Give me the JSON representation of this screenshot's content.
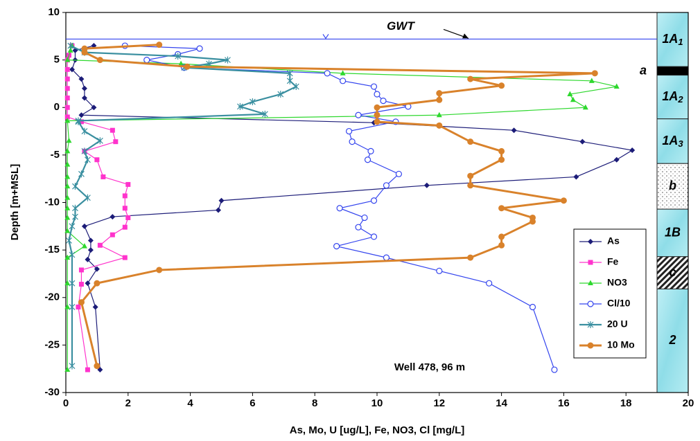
{
  "chart_data": {
    "type": "scatter",
    "x_label": "As,  Mo, U  [ug/L],   Fe, NO3, Cl  [mg/L]",
    "y_label": "Depth  [m+MSL]",
    "xlim": [
      0,
      20
    ],
    "xticks": [
      0,
      2,
      4,
      6,
      8,
      10,
      12,
      14,
      16,
      18,
      20
    ],
    "ylim": [
      -30,
      10
    ],
    "yticks": [
      -30,
      -25,
      -20,
      -15,
      -10,
      -5,
      0,
      5,
      10
    ],
    "grid": false,
    "legend": "lower right",
    "annotation": "Well 478, 96 m",
    "gwt": {
      "label": "GWT",
      "depth": 7.2
    },
    "layers": [
      {
        "label": "1A",
        "sub": "1",
        "top": 10,
        "bottom": 4.3,
        "fill": "water"
      },
      {
        "label": "a",
        "top": 4.3,
        "bottom": 3.4,
        "fill": "black"
      },
      {
        "label": "1A",
        "sub": "2",
        "top": 3.4,
        "bottom": -1.2,
        "fill": "water"
      },
      {
        "label": "1A",
        "sub": "3",
        "top": -1.2,
        "bottom": -5.9,
        "fill": "water"
      },
      {
        "label": "b",
        "top": -5.9,
        "bottom": -10.7,
        "fill": "dots"
      },
      {
        "label": "1B",
        "top": -10.7,
        "bottom": -15.7,
        "fill": "water"
      },
      {
        "label": "c",
        "top": -15.7,
        "bottom": -19.1,
        "fill": "hatch"
      },
      {
        "label": "2",
        "top": -19.1,
        "bottom": -30,
        "fill": "water"
      }
    ],
    "series": [
      {
        "name": "As",
        "color": "#1c1c78",
        "marker": "diamond",
        "line_width": 1.2,
        "x": [
          0.9,
          0.3,
          0.3,
          0.2,
          0.5,
          0.6,
          0.6,
          0.9,
          0.5,
          9.9,
          14.4,
          16.6,
          18.2,
          17.7,
          16.4,
          11.6,
          5.0,
          4.9,
          1.5,
          0.6,
          0.8,
          0.8,
          0.7,
          1.0,
          0.7,
          0.95,
          1.1
        ],
        "y": [
          6.5,
          6,
          5,
          4,
          3,
          2,
          1,
          0,
          -0.8,
          -1.6,
          -2.4,
          -3.6,
          -4.5,
          -5.5,
          -7.3,
          -8.2,
          -9.8,
          -10.8,
          -11.5,
          -12.5,
          -14,
          -15,
          -16,
          -17,
          -18.5,
          -21,
          -27.6
        ]
      },
      {
        "name": "Fe",
        "color": "#ff33cc",
        "marker": "square",
        "line_width": 1.2,
        "x": [
          0.2,
          0.1,
          0.05,
          0.05,
          0.05,
          0.05,
          0.05,
          0.05,
          0.05,
          0.5,
          1.5,
          1.6,
          0.6,
          1.0,
          1.2,
          2.0,
          1.9,
          1.9,
          2.0,
          1.9,
          1.5,
          1.1,
          1.9,
          0.5,
          0.5,
          0.4,
          0.7
        ],
        "y": [
          6.5,
          5.5,
          5,
          4,
          3,
          2,
          1,
          0,
          -1,
          -1.5,
          -2.4,
          -3.6,
          -4.6,
          -5.5,
          -7.3,
          -8.1,
          -9.3,
          -10.6,
          -11.6,
          -12.6,
          -13.4,
          -14.5,
          -15.8,
          -17.1,
          -18.6,
          -21,
          -27.6
        ]
      },
      {
        "name": "NO3",
        "color": "#2ed82e",
        "marker": "triangle",
        "line_width": 1.2,
        "x": [
          0.2,
          0.15,
          0.05,
          3.7,
          8.9,
          16.9,
          17.7,
          16.2,
          16.3,
          16.7,
          12.0,
          0.05,
          0.1,
          0.05,
          0.05,
          0.05,
          0.05,
          0.05,
          0.05,
          0.05,
          0.05,
          0.6,
          0.05,
          0.05,
          0.05,
          0.05
        ],
        "y": [
          6.5,
          6,
          5,
          4.6,
          3.6,
          2.8,
          2.2,
          1.4,
          0.8,
          0,
          -0.8,
          -1.4,
          -3.5,
          -4.6,
          -6,
          -7.3,
          -8.3,
          -9.5,
          -10.6,
          -11.6,
          -13,
          -14.6,
          -15.8,
          -18.5,
          -21,
          -27.6
        ]
      },
      {
        "name": "Cl/10",
        "color": "#3344ee",
        "marker": "circle-open",
        "line_width": 1.2,
        "x": [
          1.9,
          4.3,
          3.6,
          2.6,
          3.8,
          8.4,
          8.9,
          9.9,
          10.0,
          10.2,
          11.0,
          9.4,
          10.6,
          9.1,
          9.2,
          9.8,
          9.7,
          10.7,
          10.3,
          9.9,
          8.8,
          9.6,
          9.4,
          9.9,
          8.7,
          10.3,
          12.0,
          13.6,
          15.0,
          15.7
        ],
        "y": [
          6.5,
          6.2,
          5.6,
          5.0,
          4.2,
          3.6,
          2.8,
          2.2,
          1.4,
          0.7,
          0.1,
          -0.8,
          -1.5,
          -2.5,
          -3.6,
          -4.6,
          -5.5,
          -7.0,
          -8.2,
          -9.8,
          -10.6,
          -11.6,
          -12.6,
          -13.6,
          -14.6,
          -15.8,
          -17.2,
          -18.5,
          -21,
          -27.6
        ]
      },
      {
        "name": "20 U",
        "color": "#3a8fa0",
        "marker": "asterisk",
        "line_width": 2.2,
        "x": [
          0.15,
          0.6,
          3.6,
          5.2,
          4.6,
          3.8,
          7.2,
          7.2,
          7.4,
          6.9,
          6.0,
          5.6,
          6.4,
          0.4,
          0.4,
          0.6,
          1.1,
          0.6,
          0.7,
          0.5,
          0.3,
          0.7,
          0.3,
          0.3,
          0.2,
          0.1,
          0.2,
          0.2,
          0.2,
          0.2
        ],
        "y": [
          6.5,
          5.8,
          5.4,
          5.0,
          4.6,
          4.2,
          3.6,
          2.8,
          2.2,
          1.4,
          0.6,
          0.1,
          -0.7,
          -1.4,
          -1.5,
          -2.5,
          -3.5,
          -4.6,
          -5.5,
          -7,
          -8.3,
          -9.5,
          -10.6,
          -11.5,
          -12.5,
          -14,
          -15.5,
          -18.5,
          -21,
          -27.2
        ]
      },
      {
        "name": "10 Mo",
        "color": "#d9822b",
        "marker": "circle",
        "line_width": 3,
        "x": [
          3.0,
          0.6,
          0.6,
          1.1,
          3.9,
          17.0,
          13.0,
          14.0,
          12.0,
          12.0,
          10.0,
          10.0,
          10.0,
          12.0,
          13.0,
          14.0,
          14.0,
          13.0,
          13.0,
          16.0,
          14.0,
          15.0,
          15.0,
          14.0,
          14.0,
          13.0,
          3.0,
          1.0,
          0.5,
          1.0
        ],
        "y": [
          6.6,
          6.2,
          5.8,
          5.0,
          4.3,
          3.6,
          3.0,
          2.3,
          1.5,
          0.8,
          0,
          -0.8,
          -1.5,
          -1.9,
          -3.6,
          -4.6,
          -5.5,
          -7.2,
          -8.2,
          -9.8,
          -10.6,
          -11.6,
          -12.0,
          -13.6,
          -14.5,
          -15.8,
          -17.1,
          -18.5,
          -20.5,
          -27.2
        ]
      }
    ]
  }
}
